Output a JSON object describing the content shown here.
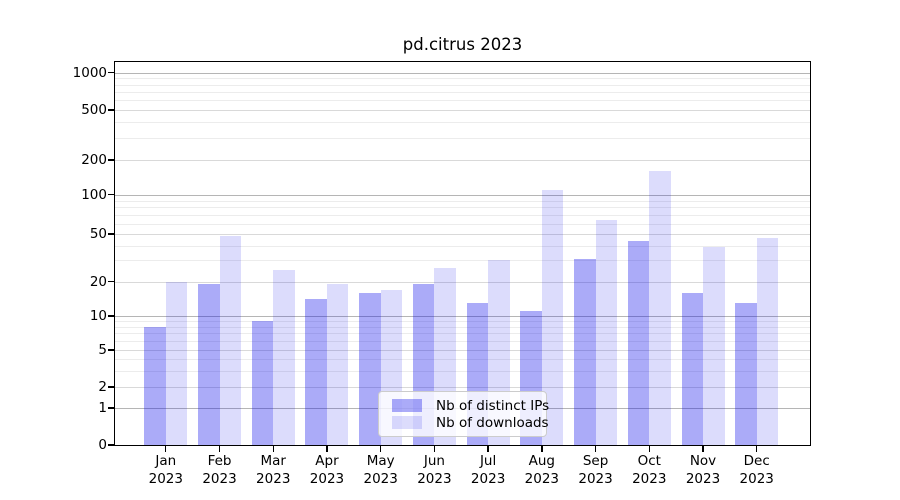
{
  "chart_data": {
    "type": "bar",
    "title": "pd.citrus 2023",
    "x": {
      "months": [
        "Jan",
        "Feb",
        "Mar",
        "Apr",
        "May",
        "Jun",
        "Jul",
        "Aug",
        "Sep",
        "Oct",
        "Nov",
        "Dec"
      ],
      "year": "2023"
    },
    "categories": [
      "Jan 2023",
      "Feb 2023",
      "Mar 2023",
      "Apr 2023",
      "May 2023",
      "Jun 2023",
      "Jul 2023",
      "Aug 2023",
      "Sep 2023",
      "Oct 2023",
      "Nov 2023",
      "Dec 2023"
    ],
    "series": [
      {
        "name": "Nb of distinct IPs",
        "color": "#0a0aeb",
        "alpha": 0.34,
        "values": [
          8,
          19,
          9,
          14,
          16,
          19,
          13,
          11,
          31,
          44,
          16,
          13
        ]
      },
      {
        "name": "Nb of downloads",
        "color": "#0a0aeb",
        "alpha": 0.14,
        "values": [
          20,
          48,
          25,
          19,
          17,
          26,
          30,
          110,
          64,
          160,
          39,
          46
        ]
      }
    ],
    "y_axis": {
      "scale": "symlog",
      "ticks": [
        0,
        1,
        2,
        5,
        10,
        20,
        50,
        100,
        200,
        500,
        1000
      ],
      "range_top": 1300
    },
    "legend": {
      "position": "lower center"
    },
    "grid": true
  }
}
